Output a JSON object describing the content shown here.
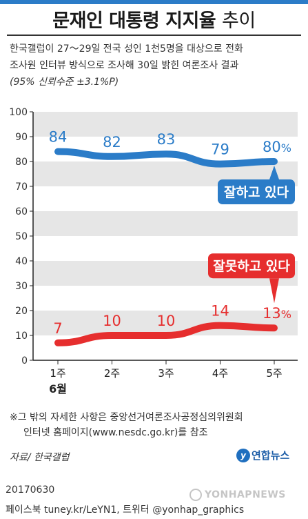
{
  "colors": {
    "approve": "#2b7cc8",
    "disapprove": "#e62e2e",
    "stripe": "#e6e6e6",
    "axis": "#222222"
  },
  "header": {
    "title_bold": "문재인 대통령 지지율",
    "title_rest": "추이"
  },
  "description": {
    "line1": "한국갤럽이 27～29일 전국 성인 1천5명을 대상으로 전화",
    "line2": "조사원 인터뷰 방식으로 조사해 30일 밝힌 여론조사 결과",
    "line3": "(95% 신뢰수준 ±3.1%P)"
  },
  "chart_data": {
    "type": "line",
    "categories": [
      "1주",
      "2주",
      "3주",
      "4주",
      "5주"
    ],
    "month_label": "6월",
    "ylim": [
      0,
      100
    ],
    "yticks": [
      0,
      10,
      20,
      30,
      40,
      50,
      60,
      70,
      80,
      90,
      100
    ],
    "grid": "alternating horizontal bands",
    "series": [
      {
        "name": "잘하고 있다",
        "values": [
          84,
          82,
          83,
          79,
          80
        ],
        "labels": [
          "84",
          "82",
          "83",
          "79",
          "80"
        ],
        "last_suffix": "%",
        "color": "#2b7cc8"
      },
      {
        "name": "잘못하고 있다",
        "values": [
          7,
          10,
          10,
          14,
          13
        ],
        "labels": [
          "7",
          "10",
          "10",
          "14",
          "13"
        ],
        "last_suffix": "%",
        "color": "#e62e2e"
      }
    ]
  },
  "footnote": {
    "line1": "※그 밖의 자세한 사항은 중앙선거여론조사공정심의위원회",
    "line2": "인터넷 홈페이지(www.nesdc.go.kr)를 참조"
  },
  "source": "자료/ 한국갤럽",
  "logo": {
    "mark": "y",
    "text": "연합뉴스"
  },
  "date": "20170630",
  "social": "페이스북 tuney.kr/LeYN1, 트위터 @yonhap_graphics",
  "watermark": "YONHAPNEWS"
}
